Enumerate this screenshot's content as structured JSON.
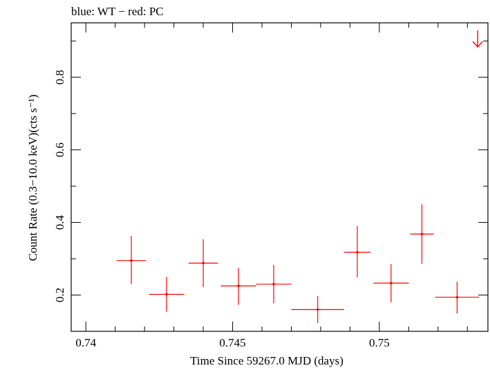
{
  "chart_data": {
    "type": "scatter",
    "title": "blue: WT − red: PC",
    "xlabel": "Time Since 59267.0 MJD (days)",
    "ylabel": "Count Rate (0.3−10.0 keV)(cts s⁻¹)",
    "xlim": [
      0.7395,
      0.7537
    ],
    "ylim": [
      0.1,
      0.95
    ],
    "x_ticks": [
      {
        "value": 0.74,
        "label": "0.74"
      },
      {
        "value": 0.745,
        "label": "0.745"
      },
      {
        "value": 0.75,
        "label": "0.75"
      }
    ],
    "y_ticks": [
      {
        "value": 0.2,
        "label": "0.2"
      },
      {
        "value": 0.4,
        "label": "0.4"
      },
      {
        "value": 0.6,
        "label": "0.6"
      },
      {
        "value": 0.8,
        "label": "0.8"
      }
    ],
    "grid": false,
    "series": [
      {
        "color": "#ff0000",
        "points": [
          {
            "x": 0.74155,
            "y": 0.295,
            "xerr": 0.0005,
            "yerr_low": 0.065,
            "yerr_high": 0.068
          },
          {
            "x": 0.74275,
            "y": 0.202,
            "xerr": 0.0006,
            "yerr_low": 0.048,
            "yerr_high": 0.048
          },
          {
            "x": 0.744,
            "y": 0.288,
            "xerr": 0.0005,
            "yerr_low": 0.066,
            "yerr_high": 0.066
          },
          {
            "x": 0.7452,
            "y": 0.225,
            "xerr": 0.0006,
            "yerr_low": 0.052,
            "yerr_high": 0.05
          },
          {
            "x": 0.7464,
            "y": 0.23,
            "xerr": 0.0006,
            "yerr_low": 0.053,
            "yerr_high": 0.053
          },
          {
            "x": 0.7479,
            "y": 0.16,
            "xerr": 0.0009,
            "yerr_low": 0.037,
            "yerr_high": 0.037
          },
          {
            "x": 0.74925,
            "y": 0.318,
            "xerr": 0.00045,
            "yerr_low": 0.07,
            "yerr_high": 0.072
          },
          {
            "x": 0.7504,
            "y": 0.233,
            "xerr": 0.0006,
            "yerr_low": 0.053,
            "yerr_high": 0.052
          },
          {
            "x": 0.75145,
            "y": 0.368,
            "xerr": 0.0004,
            "yerr_low": 0.082,
            "yerr_high": 0.082
          },
          {
            "x": 0.75265,
            "y": 0.194,
            "xerr": 0.00075,
            "yerr_low": 0.045,
            "yerr_high": 0.043
          }
        ]
      }
    ],
    "upper_limits": [
      {
        "x": 0.75335,
        "y": 0.91,
        "color": "#ff0000"
      }
    ]
  }
}
